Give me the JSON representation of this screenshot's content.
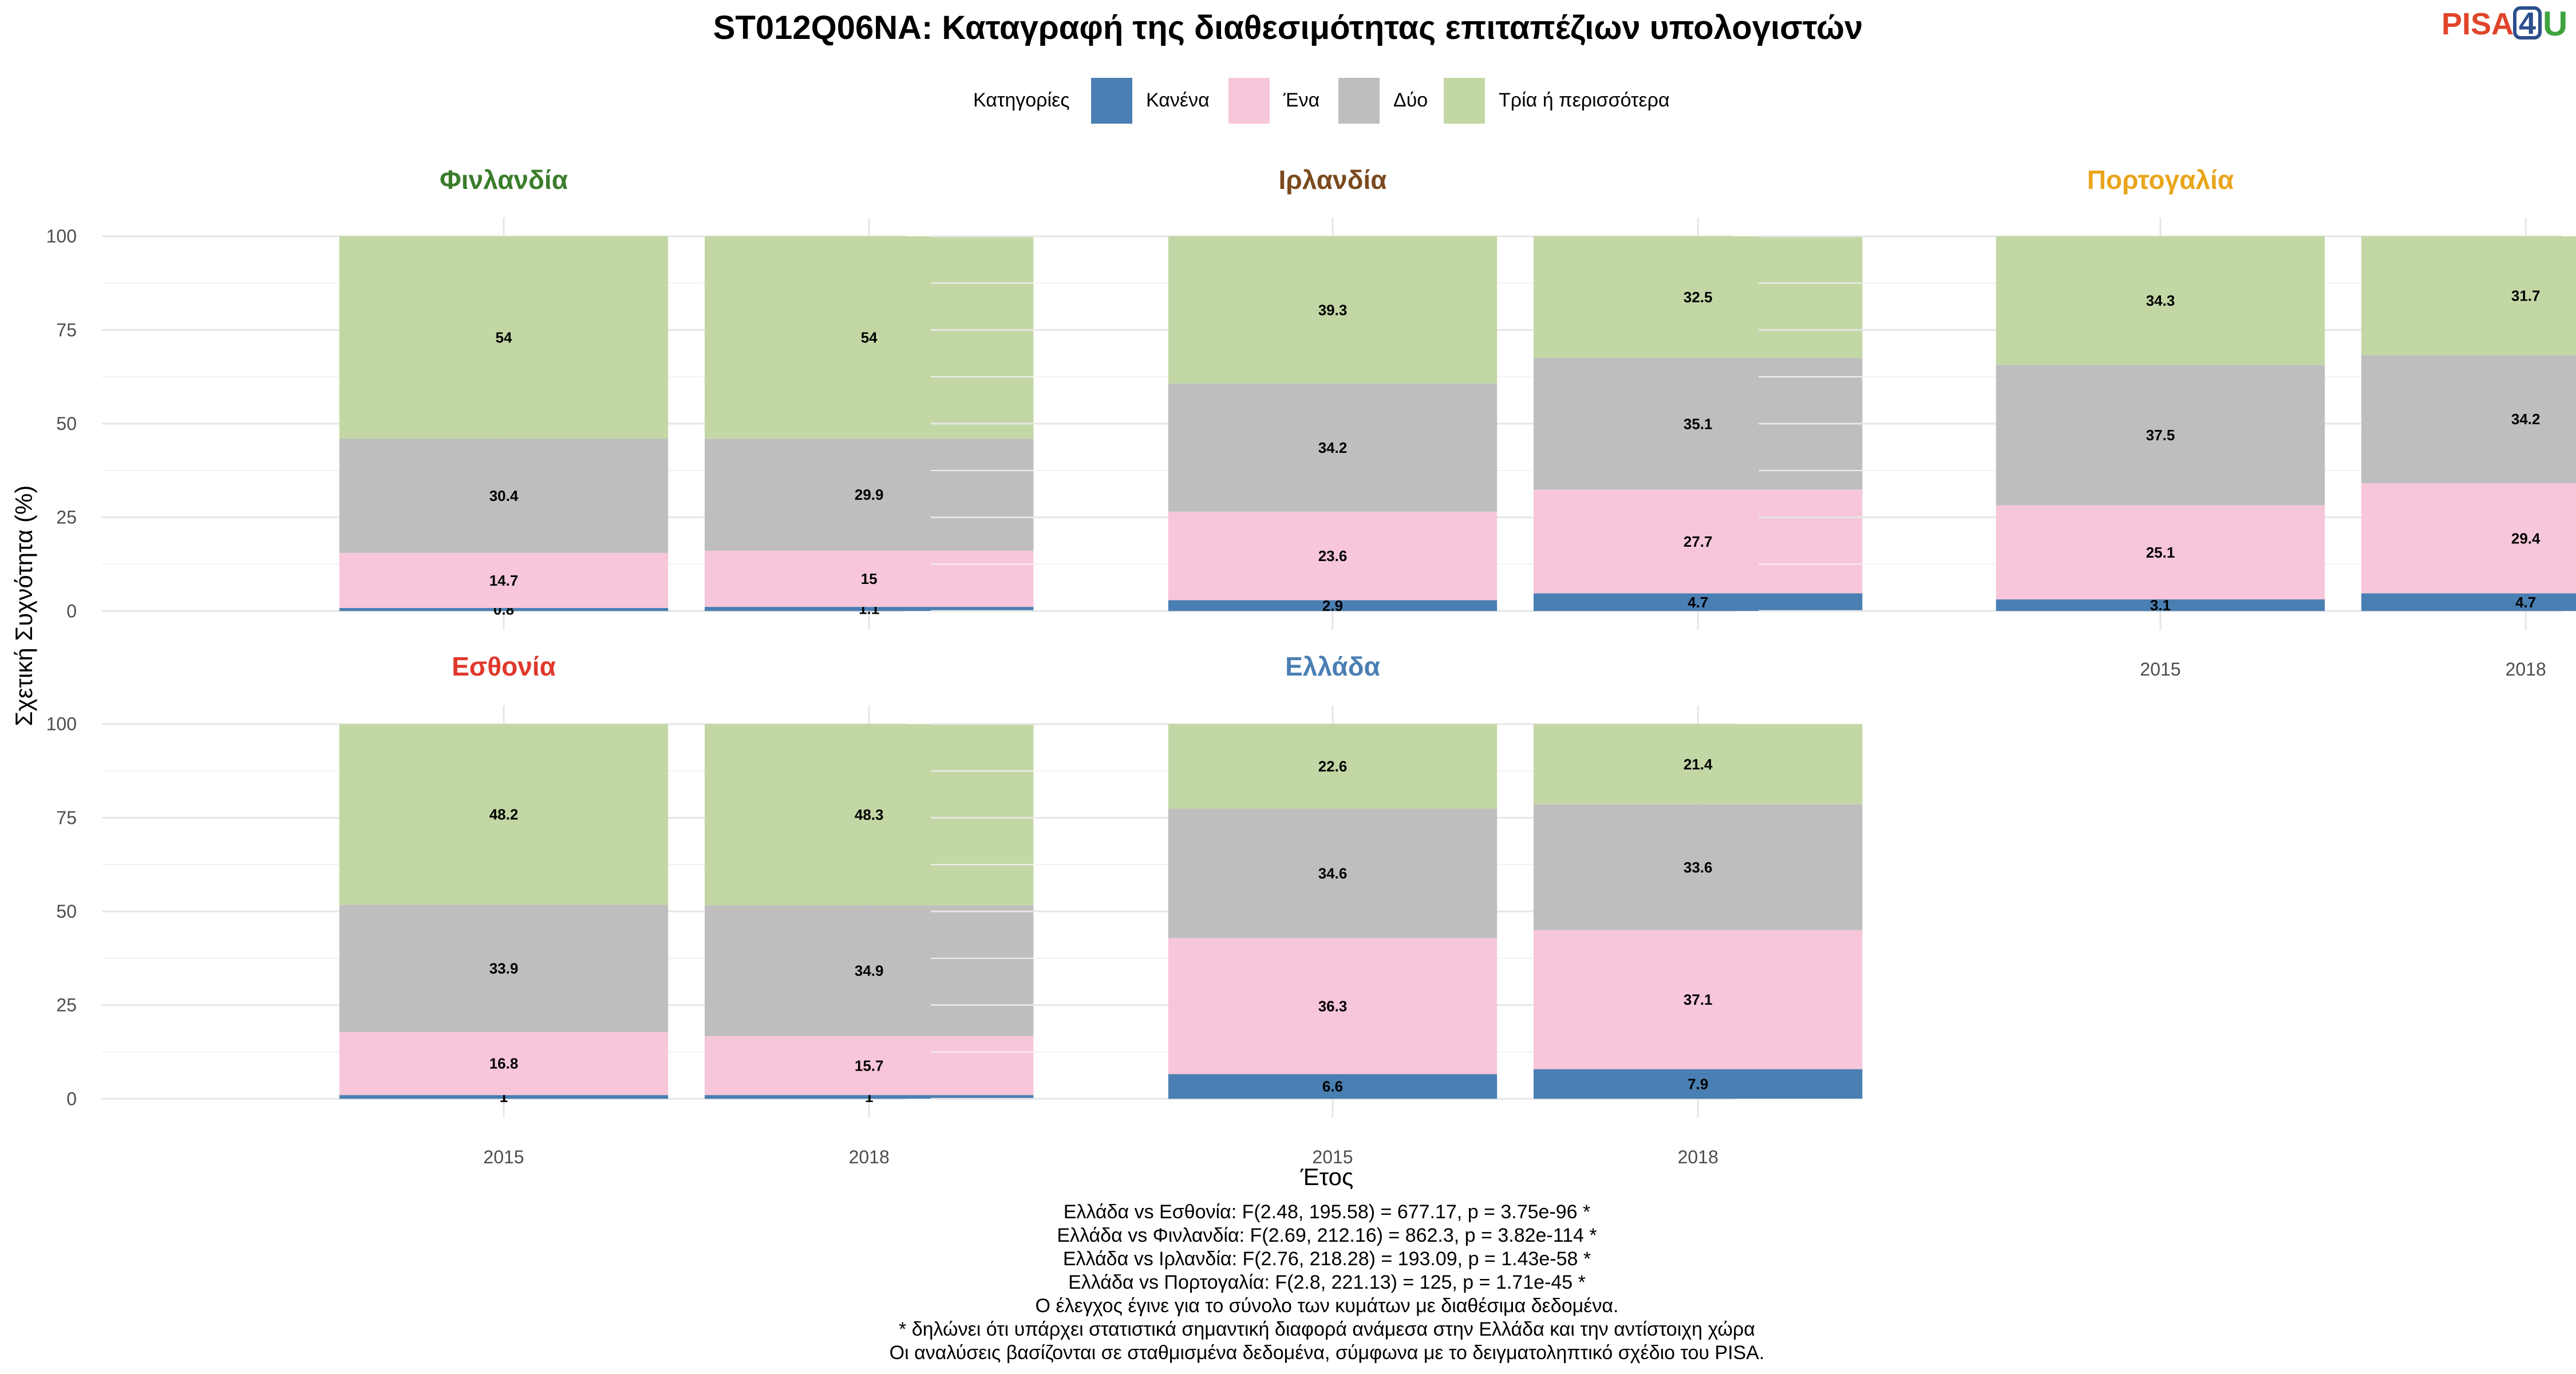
{
  "logo": {
    "part1": "PISA",
    "part2": "4",
    "part3": "U"
  },
  "chart_data": {
    "type": "bar",
    "stacked": true,
    "percent_scale": true,
    "title": "ST012Q06NA: Καταγραφή της διαθεσιμότητας επιταπέζιων υπολογιστών",
    "xlabel": "Έτος",
    "ylabel": "Σχετική Συχνότητα (%)",
    "ylim": [
      0,
      100
    ],
    "yticks": [
      0,
      25,
      50,
      75,
      100
    ],
    "grid": true,
    "legend": {
      "title": "Κατηγορίες",
      "position": "top",
      "items": [
        {
          "label": "Κανένα",
          "color": "#4a7fb3"
        },
        {
          "label": "Ένα",
          "color": "#f7c6da"
        },
        {
          "label": "Δύο",
          "color": "#bebebe"
        },
        {
          "label": "Τρία ή περισσότερα",
          "color": "#c3d7a5"
        }
      ]
    },
    "categories": [
      "2015",
      "2018"
    ],
    "panels": [
      {
        "name": "Φινλανδία",
        "color": "#3a7d2c",
        "values": {
          "2015": [
            0.8,
            14.7,
            30.4,
            54
          ],
          "2018": [
            1.1,
            15,
            29.9,
            54
          ]
        },
        "labels": {
          "2015": [
            "0.8",
            "14.7",
            "30.4",
            "54"
          ],
          "2018": [
            "1.1",
            "15",
            "29.9",
            "54"
          ]
        }
      },
      {
        "name": "Ιρλανδία",
        "color": "#7b4a1e",
        "values": {
          "2015": [
            2.9,
            23.6,
            34.2,
            39.3
          ],
          "2018": [
            4.7,
            27.7,
            35.1,
            32.5
          ]
        },
        "labels": {
          "2015": [
            "2.9",
            "23.6",
            "34.2",
            "39.3"
          ],
          "2018": [
            "4.7",
            "27.7",
            "35.1",
            "32.5"
          ]
        }
      },
      {
        "name": "Πορτογαλία",
        "color": "#e9a51c",
        "values": {
          "2015": [
            3.1,
            25.1,
            37.5,
            34.3
          ],
          "2018": [
            4.7,
            29.4,
            34.2,
            31.7
          ]
        },
        "labels": {
          "2015": [
            "3.1",
            "25.1",
            "37.5",
            "34.3"
          ],
          "2018": [
            "4.7",
            "29.4",
            "34.2",
            "31.7"
          ]
        }
      },
      {
        "name": "Εσθονία",
        "color": "#e0382b",
        "values": {
          "2015": [
            1,
            16.8,
            33.9,
            48.2
          ],
          "2018": [
            1,
            15.7,
            34.9,
            48.3
          ]
        },
        "labels": {
          "2015": [
            "1",
            "16.8",
            "33.9",
            "48.2"
          ],
          "2018": [
            "1",
            "15.7",
            "34.9",
            "48.3"
          ]
        }
      },
      {
        "name": "Ελλάδα",
        "color": "#4a7fb3",
        "values": {
          "2015": [
            6.6,
            36.3,
            34.6,
            22.6
          ],
          "2018": [
            7.9,
            37.1,
            33.6,
            21.4
          ]
        },
        "labels": {
          "2015": [
            "6.6",
            "36.3",
            "34.6",
            "22.6"
          ],
          "2018": [
            "7.9",
            "37.1",
            "33.6",
            "21.4"
          ]
        }
      }
    ],
    "caption": [
      "Ελλάδα vs Εσθονία: F(2.48, 195.58) = 677.17, p = 3.75e-96 *",
      "Ελλάδα vs Φινλανδία: F(2.69, 212.16) = 862.3, p = 3.82e-114 *",
      "Ελλάδα vs Ιρλανδία: F(2.76, 218.28) = 193.09, p = 1.43e-58 *",
      "Ελλάδα vs Πορτογαλία: F(2.8, 221.13) = 125, p = 1.71e-45 *",
      "Ο έλεγχος έγινε για το σύνολο των κυμάτων με διαθέσιμα δεδομένα.",
      "* δηλώνει ότι υπάρχει στατιστικά σημαντική διαφορά ανάμεσα στην Ελλάδα και την αντίστοιχη χώρα",
      "Οι αναλύσεις βασίζονται σε σταθμισμένα δεδομένα, σύμφωνα με το δειγματοληπτικό σχέδιο του PISA."
    ]
  }
}
